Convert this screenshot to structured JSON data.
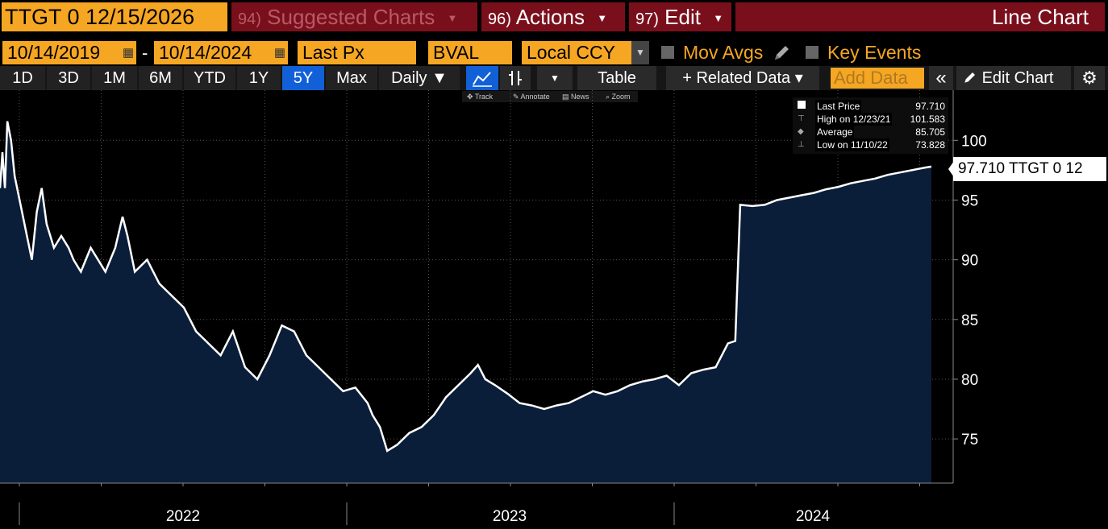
{
  "header": {
    "ticker": "TTGT 0 12/15/2026",
    "suggested_num": "94)",
    "suggested_label": "Suggested Charts",
    "actions_num": "96)",
    "actions_label": "Actions",
    "edit_num": "97)",
    "edit_label": "Edit",
    "chart_type": "Line Chart"
  },
  "controls": {
    "start_date": "10/14/2019",
    "date_separator": "-",
    "end_date": "10/14/2024",
    "field": "Last Px",
    "source": "BVAL",
    "currency": "Local CCY",
    "mov_avgs": "Mov Avgs",
    "key_events": "Key Events"
  },
  "toolbar": {
    "periods": [
      "1D",
      "3D",
      "1M",
      "6M",
      "YTD",
      "1Y",
      "5Y",
      "Max"
    ],
    "selected_period": "5Y",
    "frequency": "Daily ▼",
    "table": "Table",
    "related_data": "+ Related Data ▾",
    "add_data_placeholder": "Add Data",
    "collapse": "«",
    "edit_chart": "Edit Chart"
  },
  "hints": {
    "track": "Track",
    "annotate": "Annotate",
    "news": "News",
    "zoom": "Zoom"
  },
  "legend": {
    "last_price_label": "Last Price",
    "last_price_value": "97.710",
    "high_label": "High on 12/23/21",
    "high_value": "101.583",
    "average_label": "Average",
    "average_value": "85.705",
    "low_label": "Low on 11/10/22",
    "low_value": "73.828"
  },
  "last_tag": "97.710 TTGT 0 12",
  "colors": {
    "ticker_bg": "#f5a623",
    "menu_bg": "#7a0f1c",
    "area_fill": "#0a1e3a",
    "selected_tab": "#1160d8"
  },
  "chart_data": {
    "type": "area",
    "yticks": [
      75,
      80,
      85,
      90,
      95,
      100
    ],
    "ylim": [
      71.3,
      104.2
    ],
    "xlabels": [
      "2022",
      "2023",
      "2024"
    ],
    "x_start": "2021-10-14",
    "x_end": "2024-10-14",
    "series": [
      {
        "values": [
          [
            0,
            96
          ],
          [
            0.01,
            99
          ],
          [
            0.02,
            96
          ],
          [
            0.03,
            101.6
          ],
          [
            0.045,
            100
          ],
          [
            0.06,
            97
          ],
          [
            0.08,
            95
          ],
          [
            0.11,
            92
          ],
          [
            0.13,
            90
          ],
          [
            0.15,
            94
          ],
          [
            0.17,
            96
          ],
          [
            0.19,
            93
          ],
          [
            0.22,
            91
          ],
          [
            0.25,
            92
          ],
          [
            0.28,
            91
          ],
          [
            0.3,
            90
          ],
          [
            0.33,
            89
          ],
          [
            0.37,
            91
          ],
          [
            0.4,
            90
          ],
          [
            0.43,
            89
          ],
          [
            0.47,
            91
          ],
          [
            0.5,
            93.6
          ],
          [
            0.52,
            92
          ],
          [
            0.55,
            89
          ],
          [
            0.6,
            90
          ],
          [
            0.65,
            88
          ],
          [
            0.7,
            87
          ],
          [
            0.75,
            86
          ],
          [
            0.8,
            84
          ],
          [
            0.85,
            83
          ],
          [
            0.9,
            82
          ],
          [
            0.95,
            84
          ],
          [
            1.0,
            81
          ],
          [
            1.05,
            80
          ],
          [
            1.1,
            82
          ],
          [
            1.15,
            84.5
          ],
          [
            1.2,
            84
          ],
          [
            1.25,
            82
          ],
          [
            1.3,
            81
          ],
          [
            1.35,
            80
          ],
          [
            1.4,
            79
          ],
          [
            1.45,
            79.3
          ],
          [
            1.5,
            78
          ],
          [
            1.52,
            77
          ],
          [
            1.55,
            76
          ],
          [
            1.58,
            74
          ],
          [
            1.62,
            74.5
          ],
          [
            1.67,
            75.5
          ],
          [
            1.72,
            76
          ],
          [
            1.77,
            77
          ],
          [
            1.82,
            78.5
          ],
          [
            1.87,
            79.5
          ],
          [
            1.92,
            80.5
          ],
          [
            1.95,
            81.2
          ],
          [
            1.98,
            80
          ],
          [
            2.02,
            79.5
          ],
          [
            2.07,
            78.8
          ],
          [
            2.12,
            78
          ],
          [
            2.17,
            77.8
          ],
          [
            2.22,
            77.5
          ],
          [
            2.27,
            77.8
          ],
          [
            2.32,
            78
          ],
          [
            2.37,
            78.5
          ],
          [
            2.42,
            79
          ],
          [
            2.47,
            78.7
          ],
          [
            2.52,
            79
          ],
          [
            2.57,
            79.5
          ],
          [
            2.62,
            79.8
          ],
          [
            2.67,
            80
          ],
          [
            2.72,
            80.3
          ],
          [
            2.77,
            79.5
          ],
          [
            2.82,
            80.5
          ],
          [
            2.87,
            80.8
          ],
          [
            2.92,
            81
          ],
          [
            2.97,
            83
          ],
          [
            3.0,
            83.2
          ],
          [
            3.02,
            94.6
          ],
          [
            3.07,
            94.5
          ],
          [
            3.12,
            94.6
          ],
          [
            3.17,
            95
          ],
          [
            3.22,
            95.2
          ],
          [
            3.27,
            95.4
          ],
          [
            3.32,
            95.6
          ],
          [
            3.37,
            95.9
          ],
          [
            3.42,
            96.1
          ],
          [
            3.47,
            96.4
          ],
          [
            3.52,
            96.6
          ],
          [
            3.57,
            96.8
          ],
          [
            3.62,
            97.1
          ],
          [
            3.67,
            97.3
          ],
          [
            3.72,
            97.5
          ],
          [
            3.77,
            97.7
          ],
          [
            3.8,
            97.8
          ]
        ]
      }
    ]
  }
}
